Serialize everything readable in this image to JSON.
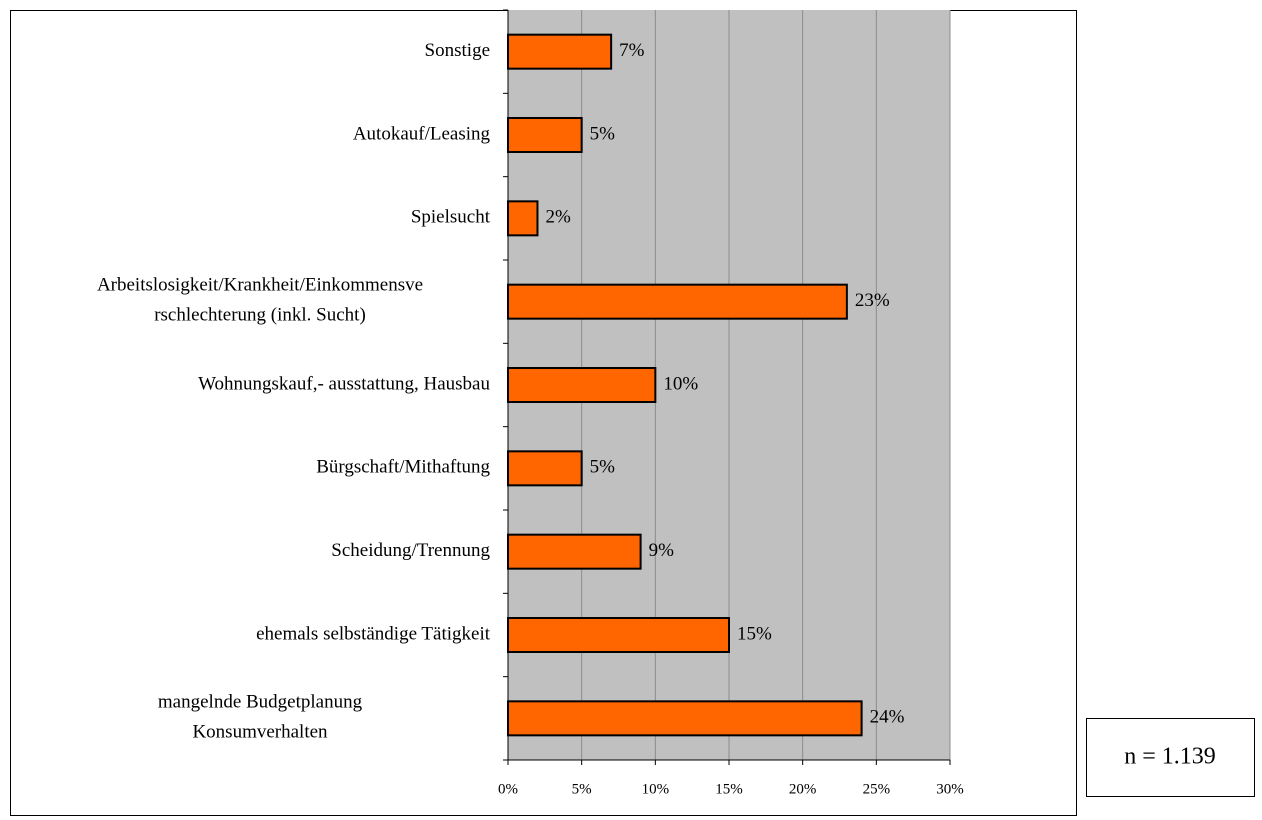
{
  "chart_data": {
    "type": "barh",
    "categories": [
      "Sonstige",
      "Autokauf/Leasing",
      "Spielsucht",
      "Arbeitslosigkeit/Krankheit/Einkommensve\nrschlechterung (inkl. Sucht)",
      "Wohnungskauf,- ausstattung, Hausbau",
      "Bürgschaft/Mithaftung",
      "Scheidung/Trennung",
      "ehemals selbständige Tätigkeit",
      "mangelnde Budgetplanung\nKonsumverhalten"
    ],
    "values": [
      7,
      5,
      2,
      23,
      10,
      5,
      9,
      15,
      24
    ],
    "value_labels": [
      "7%",
      "5%",
      "2%",
      "23%",
      "10%",
      "5%",
      "9%",
      "15%",
      "24%"
    ],
    "color": "#ff6600",
    "xlim": [
      0,
      30
    ],
    "xticks": [
      {
        "value": 0,
        "label": "0%"
      },
      {
        "value": 5,
        "label": "5%"
      },
      {
        "value": 10,
        "label": "10%"
      },
      {
        "value": 15,
        "label": "15%"
      },
      {
        "value": 20,
        "label": "20%"
      },
      {
        "value": 25,
        "label": "25%"
      },
      {
        "value": 30,
        "label": "30%"
      }
    ],
    "grid": true,
    "annotation": "n = 1.139"
  }
}
